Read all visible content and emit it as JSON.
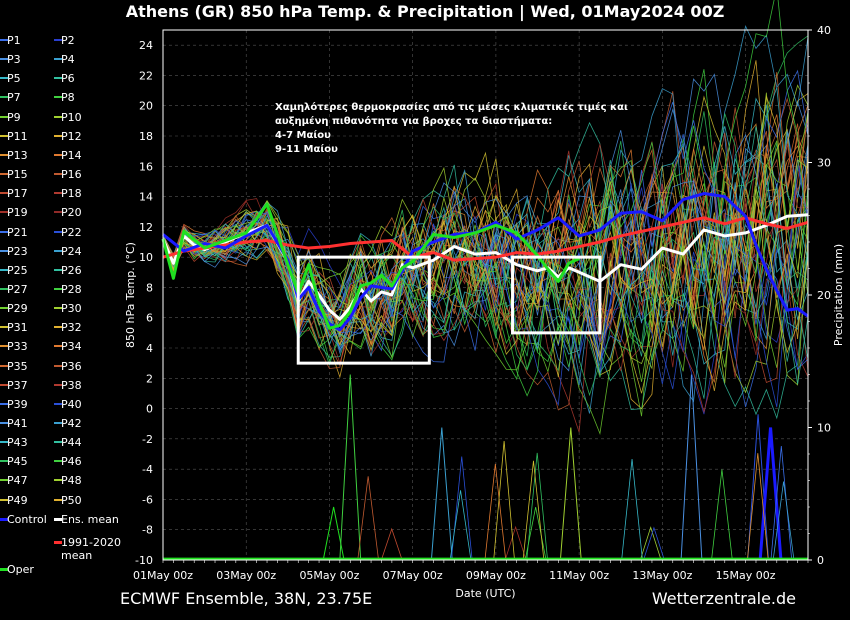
{
  "title": "Athens  (GR)  850 hPa Temp. & Precipitation | Wed, 01May2024 00Z",
  "footer_left": "ECMWF Ensemble, 38N, 23.75E",
  "footer_right": "Wetterzentrale.de",
  "annotation_lines": [
    "Χαμηλότερες θερμοκρασίες από τις μέσες κλιματικές τιμές και",
    "αυξημένη πιθανότητα για βροχες τα διαστήματα:",
    "4-7 Μαίου",
    "9-11 Μαίου"
  ],
  "legend": [
    {
      "label": "P1",
      "color": "#3a6ee8"
    },
    {
      "label": "P2",
      "color": "#2a3fd0"
    },
    {
      "label": "P3",
      "color": "#4a90e2"
    },
    {
      "label": "P4",
      "color": "#3aa0d0"
    },
    {
      "label": "P5",
      "color": "#36b8c8"
    },
    {
      "label": "P6",
      "color": "#32c0a0"
    },
    {
      "label": "P7",
      "color": "#30c060"
    },
    {
      "label": "P8",
      "color": "#40d040"
    },
    {
      "label": "P9",
      "color": "#70d030"
    },
    {
      "label": "P10",
      "color": "#a0d030"
    },
    {
      "label": "P11",
      "color": "#d0c030"
    },
    {
      "label": "P12",
      "color": "#e0b030"
    },
    {
      "label": "P13",
      "color": "#e09030"
    },
    {
      "label": "P14",
      "color": "#e07a30"
    },
    {
      "label": "P15",
      "color": "#d06830"
    },
    {
      "label": "P16",
      "color": "#c05a30"
    },
    {
      "label": "P17",
      "color": "#c04a30"
    },
    {
      "label": "P18",
      "color": "#b03a30"
    },
    {
      "label": "P19",
      "color": "#a03028"
    },
    {
      "label": "P20",
      "color": "#902a28"
    },
    {
      "label": "P21",
      "color": "#3a6ee8"
    },
    {
      "label": "P22",
      "color": "#2a50d8"
    },
    {
      "label": "P23",
      "color": "#4a90e2"
    },
    {
      "label": "P24",
      "color": "#3aa0d0"
    },
    {
      "label": "P25",
      "color": "#36b8c8"
    },
    {
      "label": "P26",
      "color": "#32c0a0"
    },
    {
      "label": "P27",
      "color": "#30c060"
    },
    {
      "label": "P28",
      "color": "#40d040"
    },
    {
      "label": "P29",
      "color": "#70d030"
    },
    {
      "label": "P30",
      "color": "#a0d030"
    },
    {
      "label": "P31",
      "color": "#d0c030"
    },
    {
      "label": "P32",
      "color": "#e0b030"
    },
    {
      "label": "P33",
      "color": "#e09030"
    },
    {
      "label": "P34",
      "color": "#e07a30"
    },
    {
      "label": "P35",
      "color": "#d06830"
    },
    {
      "label": "P36",
      "color": "#c05a30"
    },
    {
      "label": "P37",
      "color": "#c04a30"
    },
    {
      "label": "P38",
      "color": "#b03a30"
    },
    {
      "label": "P39",
      "color": "#3a6ee8"
    },
    {
      "label": "P40",
      "color": "#2a50d8"
    },
    {
      "label": "P41",
      "color": "#4a90e2"
    },
    {
      "label": "P42",
      "color": "#3aa0d0"
    },
    {
      "label": "P43",
      "color": "#36b8c8"
    },
    {
      "label": "P44",
      "color": "#32c0a0"
    },
    {
      "label": "P45",
      "color": "#30c060"
    },
    {
      "label": "P46",
      "color": "#40d040"
    },
    {
      "label": "P47",
      "color": "#70d030"
    },
    {
      "label": "P48",
      "color": "#a0d030"
    },
    {
      "label": "P49",
      "color": "#d0c030"
    },
    {
      "label": "P50",
      "color": "#e0b030"
    },
    {
      "label": "Control",
      "color": "#1a1aff"
    },
    {
      "label": "Ens. mean",
      "color": "#ffffff"
    },
    {
      "label": "1991-2020 mean",
      "color": "#ff3030"
    },
    {
      "label": "Oper",
      "color": "#20e020"
    }
  ],
  "chart_data": {
    "type": "line",
    "xlabel": "Date (UTC)",
    "ylabel": "850 hPa Temp. (°C)",
    "y2label": "Precipitation (mm)",
    "ylim": [
      -10,
      25
    ],
    "y2lim": [
      0,
      40
    ],
    "x_range_days": [
      0,
      15.5
    ],
    "x_tick_labels": [
      "01May 00z",
      "03May 00z",
      "05May 00z",
      "07May 00z",
      "09May 00z",
      "11May 00z",
      "13May 00z",
      "15May 00z"
    ],
    "x_tick_days": [
      0,
      2,
      4,
      6,
      8,
      10,
      12,
      14
    ],
    "y_ticks": [
      -10,
      -8,
      -6,
      -4,
      -2,
      0,
      2,
      4,
      6,
      8,
      10,
      12,
      14,
      16,
      18,
      20,
      22,
      24
    ],
    "y2_ticks": [
      0,
      10,
      20,
      30,
      40
    ],
    "grid": true,
    "series": [
      {
        "name": "Ens. mean",
        "color": "#ffffff",
        "x": [
          0,
          0.25,
          0.5,
          0.75,
          1,
          1.5,
          2,
          2.5,
          3,
          3.25,
          3.5,
          3.75,
          4,
          4.25,
          4.5,
          4.75,
          5,
          5.25,
          5.5,
          5.75,
          6,
          6.5,
          7,
          7.5,
          8,
          8.5,
          9,
          9.25,
          9.5,
          9.75,
          10,
          10.5,
          11,
          11.5,
          12,
          12.5,
          13,
          13.5,
          14,
          14.5,
          15,
          15.5
        ],
        "y": [
          11.2,
          9.6,
          11.4,
          10.8,
          10.5,
          11,
          11.6,
          12.1,
          9.7,
          7.1,
          8.4,
          7.5,
          6.5,
          5.9,
          6.7,
          7.9,
          7.1,
          7.7,
          7.5,
          9.5,
          9.3,
          9.8,
          10.7,
          10.2,
          10.3,
          9.5,
          9.1,
          9.3,
          8.7,
          9.3,
          9.0,
          8.4,
          9.5,
          9.2,
          10.6,
          10.2,
          11.8,
          11.4,
          11.6,
          12.1,
          12.7,
          12.8
        ]
      },
      {
        "name": "1991-2020 mean",
        "color": "#ff3030",
        "x": [
          0,
          0.5,
          1,
          1.5,
          2,
          2.5,
          3,
          3.5,
          4,
          4.5,
          5,
          5.5,
          6,
          6.5,
          7,
          7.5,
          8,
          8.5,
          9,
          9.5,
          10,
          10.5,
          11,
          11.5,
          12,
          12.5,
          13,
          13.5,
          14,
          14.5,
          15,
          15.5
        ],
        "y": [
          10,
          10.4,
          10.6,
          10.8,
          11,
          11.1,
          10.8,
          10.6,
          10.7,
          10.9,
          11.0,
          11.1,
          10.0,
          10.3,
          9.8,
          9.9,
          10.0,
          10.3,
          10.2,
          10.4,
          10.7,
          11.0,
          11.4,
          11.7,
          12.0,
          12.3,
          12.6,
          12.2,
          12.6,
          12.2,
          11.9,
          12.3
        ]
      },
      {
        "name": "Control",
        "color": "#1a1aff",
        "x": [
          0,
          0.5,
          1,
          1.5,
          2,
          2.5,
          3,
          3.25,
          3.5,
          3.75,
          4,
          4.25,
          4.5,
          4.75,
          5,
          5.5,
          6,
          6.5,
          7,
          7.5,
          8,
          8.5,
          9,
          9.5,
          10,
          10.5,
          11,
          11.5,
          12,
          12.5,
          13,
          13.5,
          14,
          14.25,
          14.5,
          14.75,
          15,
          15.25,
          15.5
        ],
        "y": [
          11.5,
          10.4,
          10.9,
          10.6,
          11.4,
          12.1,
          9.8,
          7.2,
          8.0,
          6.4,
          5.6,
          5.2,
          6.0,
          7.3,
          8.1,
          7.9,
          10.4,
          11.0,
          11.5,
          11.6,
          12.3,
          11.2,
          11.8,
          12.6,
          11.4,
          11.8,
          12.9,
          13.0,
          12.4,
          13.8,
          14.2,
          14.0,
          12.7,
          10.8,
          9.2,
          7.8,
          6.5,
          6.6,
          6.1
        ]
      },
      {
        "name": "Oper",
        "color": "#20e020",
        "x": [
          0,
          0.25,
          0.5,
          1,
          1.5,
          2,
          2.5,
          3,
          3.25,
          3.5,
          3.75,
          4,
          4.25,
          4.5,
          4.75,
          5,
          5.25,
          5.5,
          5.75,
          6,
          6.5,
          7,
          7.5,
          8,
          8.5,
          9,
          9.25,
          9.5,
          9.75,
          10
        ],
        "y": [
          11.2,
          8.6,
          11.7,
          10.6,
          11.1,
          11.6,
          13.5,
          9.5,
          7.6,
          9.5,
          7.0,
          5.3,
          5.5,
          6.4,
          8.1,
          8.3,
          8.8,
          8.1,
          9.3,
          9.7,
          11.5,
          11.3,
          11.6,
          12.1,
          11.6,
          10.1,
          9.2,
          8.4,
          9.6,
          9.9
        ]
      }
    ],
    "precip_peaks": [
      {
        "x": 4.1,
        "mm": 4,
        "color": "#20e020"
      },
      {
        "x": 4.5,
        "mm": 14,
        "color": "#40d040"
      },
      {
        "x": 6.7,
        "mm": 10,
        "color": "#3aa0d0"
      },
      {
        "x": 9.8,
        "mm": 10,
        "color": "#a0d030"
      },
      {
        "x": 12.7,
        "mm": 14,
        "color": "#4a90e2"
      },
      {
        "x": 14.3,
        "mm": 11,
        "color": "#2a50d8"
      },
      {
        "x": 14.6,
        "mm": 10,
        "color": "#1a1aff"
      }
    ],
    "highlight_boxes_label": [
      "4-7 Μαίου",
      "9-11 Μαίου"
    ]
  }
}
